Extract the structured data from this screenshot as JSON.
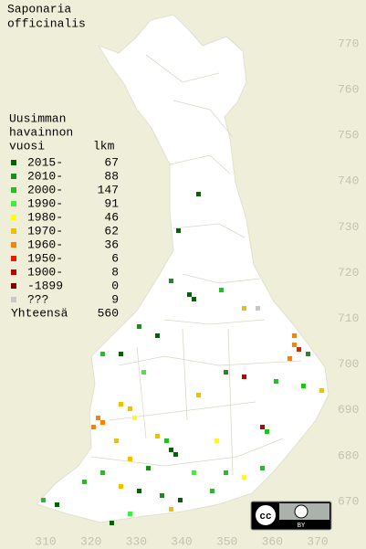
{
  "title": [
    "Saponaria",
    "officinalis"
  ],
  "legend": {
    "header": [
      "Uusimman",
      "havainnon",
      "vuosi"
    ],
    "count_header": "lkm",
    "items": [
      {
        "label": "2015-",
        "count": 67,
        "color": "#006400"
      },
      {
        "label": "2010-",
        "count": 88,
        "color": "#1e8c1e"
      },
      {
        "label": "2000-",
        "count": 147,
        "color": "#22c022"
      },
      {
        "label": "1990-",
        "count": 91,
        "color": "#3cf03c"
      },
      {
        "label": "1980-",
        "count": 46,
        "color": "#ffff00"
      },
      {
        "label": "1970-",
        "count": 62,
        "color": "#f0c000"
      },
      {
        "label": "1960-",
        "count": 36,
        "color": "#ff8000"
      },
      {
        "label": "1950-",
        "count": 6,
        "color": "#e02000"
      },
      {
        "label": "1900-",
        "count": 8,
        "color": "#c00000"
      },
      {
        "label": "-1899",
        "count": 0,
        "color": "#800000"
      },
      {
        "label": "???",
        "count": 9,
        "color": "#c8c8c8"
      }
    ],
    "total_label": "Yhteensä",
    "total": 560
  },
  "map": {
    "x_labels": [
      310,
      320,
      330,
      340,
      350,
      360,
      370
    ],
    "y_labels": [
      670,
      680,
      690,
      700,
      710,
      720,
      730,
      740,
      750,
      760,
      770
    ]
  },
  "license": {
    "cc": "cc",
    "by": "BY"
  }
}
